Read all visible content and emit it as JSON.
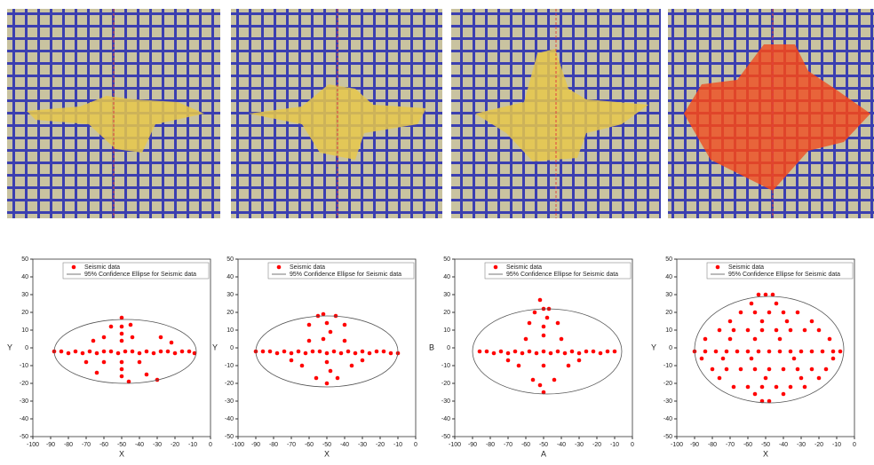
{
  "chart_data": [
    {
      "type": "scatter",
      "xlabel": "X",
      "ylabel": "Y",
      "xlim": [
        -100,
        0
      ],
      "ylim": [
        -50,
        50
      ],
      "xticks": [
        -100,
        -90,
        -80,
        -70,
        -60,
        -50,
        -40,
        -30,
        -20,
        -10,
        0
      ],
      "yticks": [
        -50,
        -40,
        -30,
        -20,
        -10,
        0,
        10,
        20,
        30,
        40,
        50
      ],
      "series": [
        {
          "name": "Seismic data",
          "color": "#ff0000",
          "x": [
            -88,
            -84,
            -80,
            -76,
            -72,
            -68,
            -64,
            -60,
            -56,
            -52,
            -48,
            -44,
            -40,
            -36,
            -32,
            -28,
            -24,
            -20,
            -16,
            -12,
            -9,
            -50,
            -50,
            -50,
            -50,
            -50,
            -50,
            -50,
            -46,
            -60,
            -44,
            -60,
            -40,
            -56,
            -64,
            -36,
            -30,
            -70,
            -28,
            -22,
            -66,
            -45
          ],
          "values": [
            -2,
            -2,
            -3,
            -2,
            -3,
            -2,
            -3,
            -2,
            -2,
            -3,
            -2,
            -2,
            -3,
            -2,
            -3,
            -2,
            -2,
            -3,
            -2,
            -2,
            -3,
            17,
            12,
            8,
            4,
            -8,
            -12,
            -16,
            -19,
            6,
            6,
            -8,
            -8,
            12,
            -14,
            -15,
            -18,
            -8,
            6,
            3,
            4,
            13
          ]
        },
        {
          "name": "95% Confidence Ellipse for Seismic data",
          "color": "#555555",
          "center": [
            -48,
            -2
          ],
          "radii": [
            40,
            18
          ]
        }
      ]
    },
    {
      "type": "scatter",
      "xlabel": "X",
      "ylabel": "Y",
      "xlim": [
        -100,
        0
      ],
      "ylim": [
        -50,
        50
      ],
      "xticks": [
        -100,
        -90,
        -80,
        -70,
        -60,
        -50,
        -40,
        -30,
        -20,
        -10,
        0
      ],
      "yticks": [
        -50,
        -40,
        -30,
        -20,
        -10,
        0,
        10,
        20,
        30,
        40,
        50
      ],
      "series": [
        {
          "name": "Seismic data",
          "color": "#ff0000",
          "x": [
            -90,
            -86,
            -82,
            -78,
            -74,
            -70,
            -66,
            -62,
            -58,
            -54,
            -50,
            -46,
            -42,
            -38,
            -34,
            -30,
            -26,
            -22,
            -18,
            -14,
            -10,
            -52,
            -50,
            -48,
            -52,
            -50,
            -48,
            -60,
            -40,
            -64,
            -36,
            -56,
            -44,
            -70,
            -30,
            -60,
            -40,
            -50,
            -55,
            -45
          ],
          "values": [
            -2,
            -2,
            -2,
            -3,
            -2,
            -3,
            -2,
            -3,
            -2,
            -2,
            -3,
            -2,
            -3,
            -2,
            -3,
            -2,
            -3,
            -2,
            -2,
            -3,
            -3,
            19,
            14,
            9,
            5,
            -8,
            -13,
            4,
            4,
            -10,
            -10,
            -17,
            -17,
            -7,
            -7,
            13,
            13,
            -20,
            18,
            18
          ]
        },
        {
          "name": "95% Confidence Ellipse for Seismic data",
          "color": "#555555",
          "center": [
            -50,
            -2
          ],
          "radii": [
            40,
            20
          ]
        }
      ]
    },
    {
      "type": "scatter",
      "xlabel": "A",
      "ylabel": "B",
      "xlim": [
        -100,
        0
      ],
      "ylim": [
        -50,
        50
      ],
      "xticks": [
        -100,
        -90,
        -80,
        -70,
        -60,
        -50,
        -40,
        -30,
        -20,
        -10,
        0
      ],
      "yticks": [
        -50,
        -40,
        -30,
        -20,
        -10,
        0,
        10,
        20,
        30,
        40,
        50
      ],
      "series": [
        {
          "name": "Seismic data",
          "color": "#ff0000",
          "x": [
            -86,
            -82,
            -78,
            -74,
            -70,
            -66,
            -62,
            -58,
            -54,
            -50,
            -46,
            -42,
            -38,
            -34,
            -30,
            -26,
            -22,
            -18,
            -14,
            -10,
            -52,
            -50,
            -48,
            -50,
            -50,
            -50,
            -50,
            -60,
            -40,
            -64,
            -36,
            -56,
            -44,
            -70,
            -30,
            -58,
            -42,
            -55,
            -47,
            -52
          ],
          "values": [
            -2,
            -2,
            -3,
            -2,
            -3,
            -2,
            -3,
            -2,
            -3,
            -2,
            -3,
            -2,
            -3,
            -2,
            -3,
            -2,
            -2,
            -3,
            -2,
            -2,
            27,
            22,
            17,
            12,
            7,
            -10,
            -25,
            5,
            5,
            -10,
            -10,
            -18,
            -18,
            -7,
            -7,
            14,
            14,
            20,
            22,
            -21
          ]
        },
        {
          "name": "95% Confidence Ellipse for Seismic data",
          "color": "#555555",
          "center": [
            -48,
            -2
          ],
          "radii": [
            42,
            24
          ]
        }
      ]
    },
    {
      "type": "scatter",
      "xlabel": "X",
      "ylabel": "Y",
      "xlim": [
        -100,
        0
      ],
      "ylim": [
        -50,
        50
      ],
      "xticks": [
        -100,
        -90,
        -80,
        -70,
        -60,
        -50,
        -40,
        -30,
        -20,
        -10,
        0
      ],
      "yticks": [
        -50,
        -40,
        -30,
        -20,
        -10,
        0,
        10,
        20,
        30,
        40,
        50
      ],
      "series": [
        {
          "name": "Seismic data",
          "color": "#ff0000",
          "x": [
            -90,
            -84,
            -78,
            -72,
            -66,
            -60,
            -54,
            -48,
            -42,
            -36,
            -30,
            -24,
            -18,
            -12,
            -8,
            -76,
            -68,
            -60,
            -52,
            -44,
            -36,
            -28,
            -20,
            -64,
            -56,
            -48,
            -40,
            -32,
            -80,
            -72,
            -64,
            -56,
            -48,
            -40,
            -32,
            -24,
            -16,
            -68,
            -60,
            -52,
            -44,
            -36,
            -28,
            -54,
            -50,
            -46,
            -52,
            -48,
            -84,
            -70,
            -56,
            -42,
            -14,
            -86,
            -74,
            -58,
            -34,
            -12,
            -70,
            -52,
            -38,
            -24,
            -76,
            -50,
            -30,
            -20,
            -58,
            -44,
            -56,
            -40
          ],
          "values": [
            -2,
            -2,
            -2,
            -2,
            -2,
            -2,
            -2,
            -2,
            -2,
            -2,
            -2,
            -2,
            -2,
            -2,
            -2,
            10,
            10,
            10,
            10,
            10,
            10,
            10,
            10,
            20,
            20,
            20,
            20,
            20,
            -12,
            -12,
            -12,
            -12,
            -12,
            -12,
            -12,
            -12,
            -12,
            -22,
            -22,
            -22,
            -22,
            -22,
            -22,
            30,
            30,
            30,
            -30,
            -30,
            5,
            5,
            5,
            5,
            5,
            -6,
            -6,
            -6,
            -6,
            -6,
            15,
            15,
            15,
            15,
            -17,
            -17,
            -17,
            -17,
            25,
            25,
            -26,
            -26
          ]
        },
        {
          "name": "95% Confidence Ellipse for Seismic data",
          "color": "#555555",
          "center": [
            -48,
            -1
          ],
          "radii": [
            42,
            30
          ]
        }
      ]
    }
  ]
}
